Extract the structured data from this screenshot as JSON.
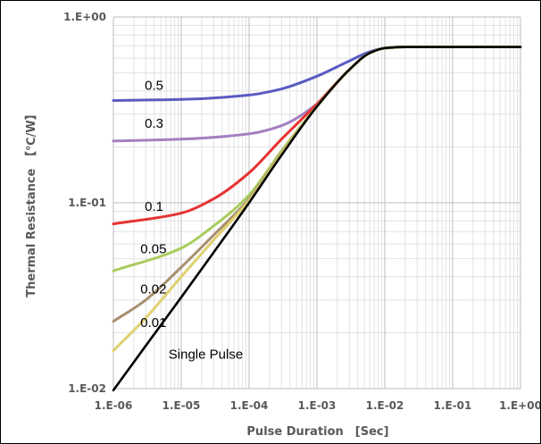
{
  "chart_data": {
    "type": "line",
    "title": "",
    "xlabel": "Pulse Duration　[Sec]",
    "ylabel": "Thermal Resistance　【℃/W】",
    "x_scale": "log",
    "y_scale": "log",
    "xlim": [
      1e-06,
      1
    ],
    "ylim": [
      0.01,
      1
    ],
    "grid": true,
    "x_ticks": [
      "1.E-06",
      "1.E-05",
      "1.E-04",
      "1.E-03",
      "1.E-02",
      "1.E-01",
      "1.E+00"
    ],
    "y_ticks": [
      "1.E+00",
      "1.E-01",
      "1.E-02"
    ],
    "series": [
      {
        "name": "0.5",
        "color": "#5a5cc2",
        "x": [
          1e-06,
          1e-05,
          0.0001,
          0.0003,
          0.001,
          0.003,
          0.006,
          0.01,
          0.02,
          0.1,
          1
        ],
        "y": [
          0.355,
          0.36,
          0.38,
          0.41,
          0.48,
          0.58,
          0.65,
          0.68,
          0.69,
          0.69,
          0.69
        ]
      },
      {
        "name": "0.3",
        "color": "#a47fc1",
        "x": [
          1e-06,
          1e-05,
          0.0001,
          0.0003,
          0.001,
          0.003,
          0.006,
          0.01,
          0.02,
          0.1,
          1
        ],
        "y": [
          0.215,
          0.22,
          0.235,
          0.26,
          0.34,
          0.52,
          0.64,
          0.68,
          0.69,
          0.69,
          0.69
        ]
      },
      {
        "name": "0.1",
        "color": "#e53333",
        "x": [
          1e-06,
          1e-05,
          3e-05,
          0.0001,
          0.0003,
          0.001,
          0.003,
          0.006,
          0.01,
          0.02,
          0.1,
          1
        ],
        "y": [
          0.077,
          0.088,
          0.105,
          0.145,
          0.22,
          0.34,
          0.52,
          0.64,
          0.68,
          0.69,
          0.69,
          0.69
        ]
      },
      {
        "name": "0.05",
        "color": "#a8cc5c",
        "x": [
          1e-06,
          1e-05,
          3e-05,
          0.0001,
          0.0003,
          0.001,
          0.003,
          0.006,
          0.01,
          0.02,
          0.1,
          1
        ],
        "y": [
          0.043,
          0.057,
          0.075,
          0.11,
          0.19,
          0.33,
          0.52,
          0.64,
          0.68,
          0.69,
          0.69,
          0.69
        ]
      },
      {
        "name": "0.02",
        "color": "#a89070",
        "x": [
          1e-06,
          3e-06,
          1e-05,
          3e-05,
          0.0001,
          0.0003,
          0.001,
          0.003,
          0.006,
          0.01,
          0.02,
          0.1,
          1
        ],
        "y": [
          0.023,
          0.03,
          0.045,
          0.067,
          0.105,
          0.185,
          0.33,
          0.52,
          0.64,
          0.68,
          0.69,
          0.69,
          0.69
        ]
      },
      {
        "name": "0.01",
        "color": "#e0d070",
        "x": [
          1e-06,
          3e-06,
          1e-05,
          3e-05,
          0.0001,
          0.0003,
          0.001,
          0.003,
          0.006,
          0.01,
          0.02,
          0.1,
          1
        ],
        "y": [
          0.016,
          0.024,
          0.04,
          0.063,
          0.103,
          0.183,
          0.33,
          0.52,
          0.64,
          0.68,
          0.69,
          0.69,
          0.69
        ]
      },
      {
        "name": "Single Pulse",
        "color": "#000000",
        "x": [
          1e-06,
          3e-06,
          1e-05,
          3e-05,
          0.0001,
          0.0003,
          0.001,
          0.003,
          0.006,
          0.01,
          0.02,
          0.1,
          1
        ],
        "y": [
          0.0098,
          0.017,
          0.031,
          0.054,
          0.1,
          0.18,
          0.33,
          0.52,
          0.64,
          0.68,
          0.69,
          0.69,
          0.69
        ]
      }
    ],
    "annotations": [
      {
        "text": "0.5",
        "x": 2.9e-06,
        "y": 0.405
      },
      {
        "text": "0.3",
        "x": 2.9e-06,
        "y": 0.253
      },
      {
        "text": "0.1",
        "x": 2.9e-06,
        "y": 0.0905
      },
      {
        "text": "0.05",
        "x": 2.5e-06,
        "y": 0.0535
      },
      {
        "text": "0.02",
        "x": 2.5e-06,
        "y": 0.0325
      },
      {
        "text": "0.01",
        "x": 2.5e-06,
        "y": 0.0215
      },
      {
        "text": "Single Pulse",
        "x": 6.5e-06,
        "y": 0.0145
      }
    ]
  }
}
